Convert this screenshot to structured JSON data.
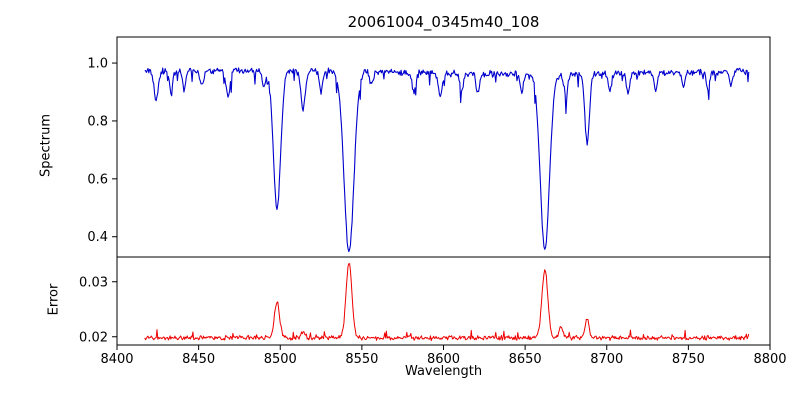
{
  "chart_data": {
    "type": "line",
    "title": "20061004_0345m40_108",
    "xlabel": "Wavelength",
    "xlim": [
      8400,
      8800
    ],
    "x_ticks": [
      8400,
      8450,
      8500,
      8550,
      8600,
      8650,
      8700,
      8750,
      8800
    ],
    "x_tick_labels": [
      "8400",
      "8450",
      "8500",
      "8550",
      "8600",
      "8650",
      "8700",
      "8750",
      "8800"
    ],
    "x_data_range": [
      8417,
      8787
    ],
    "grid": false,
    "legend": "none",
    "panels": [
      {
        "ylabel": "Spectrum",
        "ylim": [
          0.33,
          1.09
        ],
        "y_ticks": [
          0.4,
          0.6,
          0.8,
          1.0
        ],
        "y_tick_labels": [
          "0.4",
          "0.6",
          "0.8",
          "1.0"
        ],
        "color": "#0000cd",
        "continuum": 0.968,
        "noise_amplitude": 0.013,
        "absorption_lines": [
          {
            "center": 8498.0,
            "depth": 0.48,
            "sigma": 2.2
          },
          {
            "center": 8542.1,
            "depth": 0.625,
            "sigma": 3.0
          },
          {
            "center": 8662.1,
            "depth": 0.61,
            "sigma": 2.8
          },
          {
            "center": 8688.0,
            "depth": 0.24,
            "sigma": 1.4
          },
          {
            "center": 8424,
            "depth": 0.1,
            "sigma": 1.2
          },
          {
            "center": 8433,
            "depth": 0.07,
            "sigma": 1.0
          },
          {
            "center": 8441,
            "depth": 0.06,
            "sigma": 1.0
          },
          {
            "center": 8452,
            "depth": 0.05,
            "sigma": 1.0
          },
          {
            "center": 8468,
            "depth": 0.09,
            "sigma": 1.2
          },
          {
            "center": 8490,
            "depth": 0.06,
            "sigma": 1.0
          },
          {
            "center": 8514,
            "depth": 0.13,
            "sigma": 1.4
          },
          {
            "center": 8525,
            "depth": 0.07,
            "sigma": 1.0
          },
          {
            "center": 8556,
            "depth": 0.05,
            "sigma": 1.0
          },
          {
            "center": 8582,
            "depth": 0.07,
            "sigma": 1.1
          },
          {
            "center": 8598,
            "depth": 0.08,
            "sigma": 1.2
          },
          {
            "center": 8611,
            "depth": 0.06,
            "sigma": 1.0
          },
          {
            "center": 8621,
            "depth": 0.07,
            "sigma": 1.0
          },
          {
            "center": 8648,
            "depth": 0.06,
            "sigma": 1.0
          },
          {
            "center": 8675,
            "depth": 0.08,
            "sigma": 1.1
          },
          {
            "center": 8702,
            "depth": 0.06,
            "sigma": 1.0
          },
          {
            "center": 8713,
            "depth": 0.07,
            "sigma": 1.0
          },
          {
            "center": 8730,
            "depth": 0.06,
            "sigma": 1.0
          },
          {
            "center": 8747,
            "depth": 0.05,
            "sigma": 1.0
          },
          {
            "center": 8762,
            "depth": 0.06,
            "sigma": 1.0
          },
          {
            "center": 8776,
            "depth": 0.05,
            "sigma": 1.0
          }
        ]
      },
      {
        "ylabel": "Error",
        "ylim": [
          0.0185,
          0.0345
        ],
        "y_ticks": [
          0.02,
          0.03
        ],
        "y_tick_labels": [
          "0.02",
          "0.03"
        ],
        "color": "#ee0000",
        "baseline": 0.0198,
        "noise_amplitude": 0.0005,
        "emission_peaks": [
          {
            "center": 8498.0,
            "height": 0.0065,
            "sigma": 1.6
          },
          {
            "center": 8514.0,
            "height": 0.0012,
            "sigma": 1.2
          },
          {
            "center": 8542.1,
            "height": 0.0135,
            "sigma": 1.8
          },
          {
            "center": 8662.1,
            "height": 0.0125,
            "sigma": 1.8
          },
          {
            "center": 8672.0,
            "height": 0.002,
            "sigma": 1.2
          },
          {
            "center": 8688.0,
            "height": 0.0035,
            "sigma": 1.2
          }
        ]
      }
    ]
  }
}
